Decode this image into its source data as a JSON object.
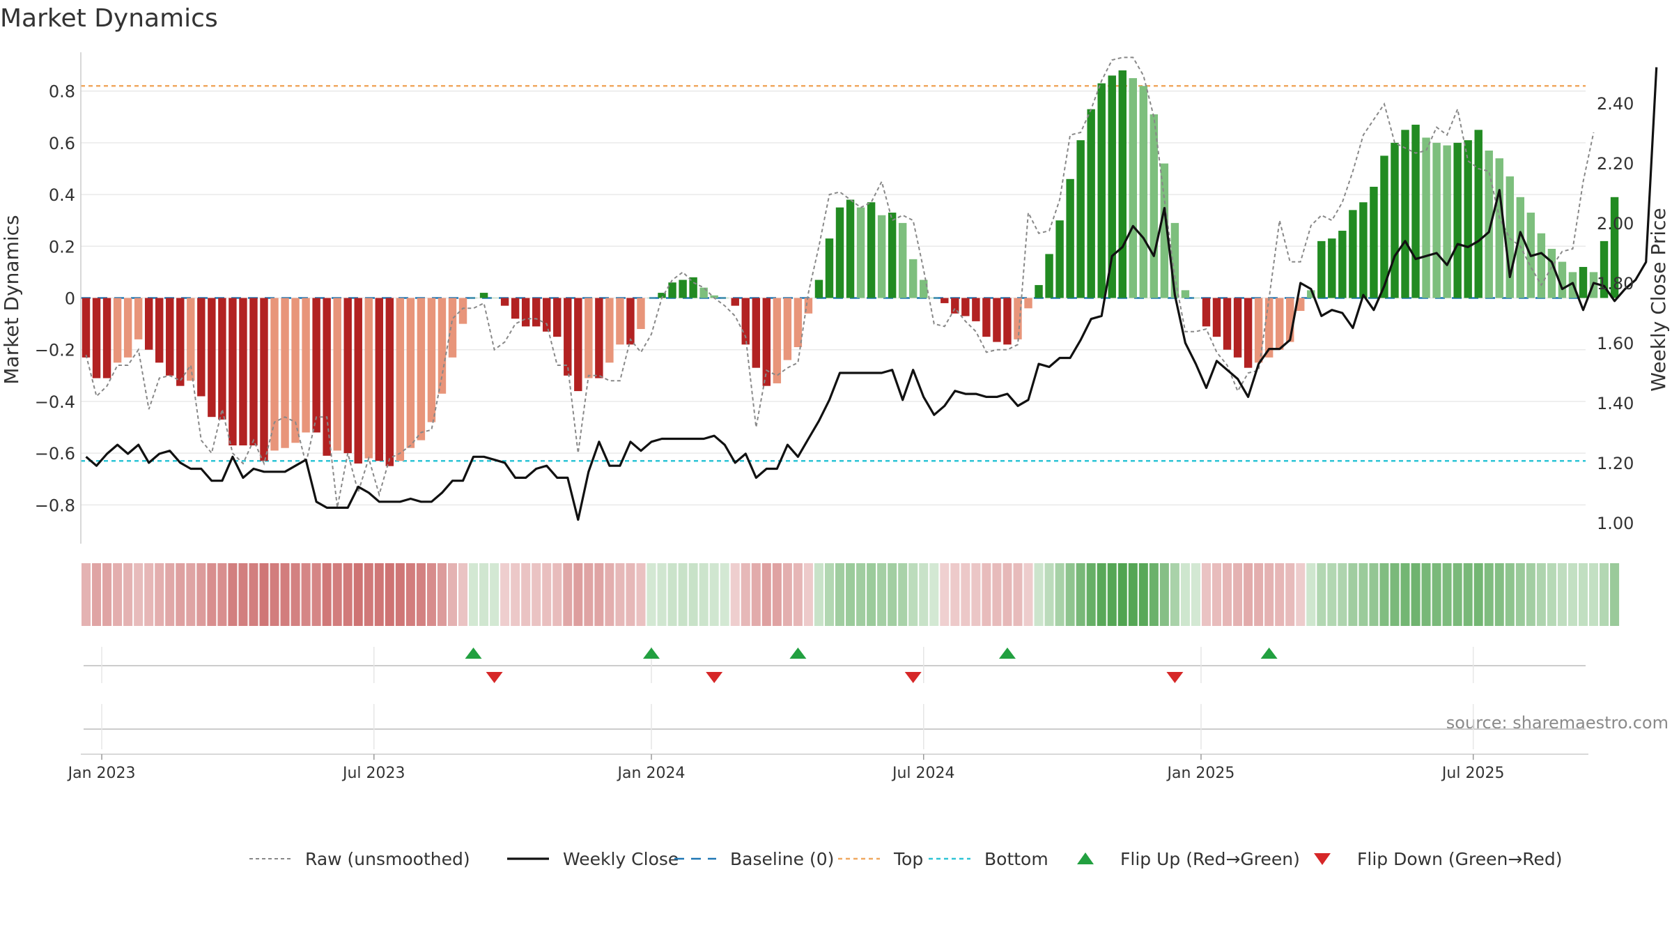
{
  "chart_data": {
    "type": "bar",
    "title": "Market Dynamics",
    "ylabel_left": "Market Dynamics",
    "ylabel_right": "Weekly Close Price",
    "source": "source: sharemaestro.com",
    "y_left": {
      "min": -0.95,
      "max": 0.95,
      "ticks": [
        -0.8,
        -0.6,
        -0.4,
        -0.2,
        0,
        0.2,
        0.4,
        0.6,
        0.8
      ],
      "tick_labels": [
        "−0.8",
        "−0.6",
        "−0.4",
        "−0.2",
        "0",
        "0.2",
        "0.4",
        "0.6",
        "0.8"
      ]
    },
    "y_right": {
      "min": 0.93,
      "max": 2.57,
      "ticks": [
        1.0,
        1.2,
        1.4,
        1.6,
        1.8,
        2.0,
        2.2,
        2.4
      ],
      "tick_labels": [
        "1.00",
        "1.20",
        "1.40",
        "1.60",
        "1.80",
        "2.00",
        "2.20",
        "2.40"
      ]
    },
    "x_axis": {
      "start_week": 0,
      "end_week": 144,
      "ticks": [
        {
          "week": 2,
          "label": "Jan 2023"
        },
        {
          "week": 28,
          "label": "Jul 2023"
        },
        {
          "week": 54.5,
          "label": "Jan 2024"
        },
        {
          "week": 80.5,
          "label": "Jul 2024"
        },
        {
          "week": 107,
          "label": "Jan 2025"
        },
        {
          "week": 133,
          "label": "Jul 2025"
        }
      ]
    },
    "top_level": 0.82,
    "bottom_level": -0.63,
    "baseline": 0,
    "series": [
      {
        "name": "Market Dynamics (smoothed)",
        "values": [
          -0.23,
          -0.31,
          -0.31,
          -0.25,
          -0.23,
          -0.16,
          -0.2,
          -0.25,
          -0.3,
          -0.34,
          -0.32,
          -0.38,
          -0.46,
          -0.47,
          -0.57,
          -0.57,
          -0.57,
          -0.63,
          -0.59,
          -0.58,
          -0.56,
          -0.52,
          -0.52,
          -0.61,
          -0.59,
          -0.6,
          -0.64,
          -0.62,
          -0.63,
          -0.65,
          -0.63,
          -0.58,
          -0.55,
          -0.48,
          -0.37,
          -0.23,
          -0.1,
          0.0,
          0.02,
          0.0,
          -0.03,
          -0.08,
          -0.11,
          -0.11,
          -0.13,
          -0.15,
          -0.3,
          -0.36,
          -0.31,
          -0.31,
          -0.25,
          -0.18,
          -0.18,
          -0.12,
          0.0,
          0.02,
          0.06,
          0.07,
          0.08,
          0.04,
          0.01,
          0.0,
          -0.03,
          -0.18,
          -0.27,
          -0.34,
          -0.33,
          -0.24,
          -0.19,
          -0.06,
          0.07,
          0.23,
          0.35,
          0.38,
          0.35,
          0.37,
          0.32,
          0.33,
          0.29,
          0.15,
          0.07,
          0.0,
          -0.02,
          -0.06,
          -0.07,
          -0.09,
          -0.15,
          -0.17,
          -0.18,
          -0.16,
          -0.04,
          0.05,
          0.17,
          0.3,
          0.46,
          0.61,
          0.73,
          0.83,
          0.86,
          0.88,
          0.85,
          0.82,
          0.71,
          0.52,
          0.29,
          0.03,
          0.0,
          -0.11,
          -0.15,
          -0.2,
          -0.23,
          -0.27,
          -0.25,
          -0.23,
          -0.2,
          -0.17,
          -0.05,
          0.03,
          0.22,
          0.23,
          0.26,
          0.34,
          0.37,
          0.43,
          0.55,
          0.6,
          0.65,
          0.67,
          0.62,
          0.6,
          0.59,
          0.6,
          0.61,
          0.65,
          0.57,
          0.54,
          0.47,
          0.39,
          0.33,
          0.25,
          0.19,
          0.14,
          0.1,
          0.12,
          0.1,
          0.22,
          0.39
        ]
      },
      {
        "name": "Raw (unsmoothed)",
        "values": [
          -0.22,
          -0.38,
          -0.34,
          -0.26,
          -0.26,
          -0.2,
          -0.43,
          -0.31,
          -0.3,
          -0.32,
          -0.26,
          -0.55,
          -0.6,
          -0.43,
          -0.6,
          -0.64,
          -0.55,
          -0.64,
          -0.48,
          -0.46,
          -0.48,
          -0.64,
          -0.46,
          -0.46,
          -0.81,
          -0.6,
          -0.75,
          -0.62,
          -0.76,
          -0.62,
          -0.6,
          -0.57,
          -0.52,
          -0.51,
          -0.3,
          -0.08,
          -0.04,
          -0.04,
          -0.02,
          -0.2,
          -0.17,
          -0.1,
          -0.08,
          -0.08,
          -0.1,
          -0.26,
          -0.26,
          -0.6,
          -0.3,
          -0.3,
          -0.32,
          -0.32,
          -0.16,
          -0.21,
          -0.14,
          0.0,
          0.07,
          0.1,
          0.06,
          0.04,
          0.0,
          -0.03,
          -0.07,
          -0.15,
          -0.5,
          -0.28,
          -0.3,
          -0.27,
          -0.25,
          0.02,
          0.2,
          0.4,
          0.41,
          0.38,
          0.35,
          0.37,
          0.45,
          0.3,
          0.32,
          0.3,
          0.11,
          -0.1,
          -0.11,
          -0.04,
          -0.09,
          -0.13,
          -0.21,
          -0.2,
          -0.2,
          -0.18,
          0.33,
          0.25,
          0.26,
          0.38,
          0.63,
          0.64,
          0.73,
          0.84,
          0.92,
          0.93,
          0.93,
          0.86,
          0.7,
          0.38,
          0.08,
          -0.13,
          -0.13,
          -0.12,
          -0.21,
          -0.26,
          -0.36,
          -0.29,
          -0.28,
          0.0,
          0.3,
          0.14,
          0.14,
          0.28,
          0.32,
          0.3,
          0.37,
          0.49,
          0.63,
          0.69,
          0.75,
          0.6,
          0.58,
          0.56,
          0.57,
          0.66,
          0.63,
          0.73,
          0.53,
          0.5,
          0.49,
          0.31,
          0.23,
          0.2,
          0.12,
          0.05,
          0.12,
          0.18,
          0.19,
          0.45,
          0.64
        ]
      },
      {
        "name": "Weekly Close",
        "values": [
          1.22,
          1.19,
          1.23,
          1.26,
          1.23,
          1.26,
          1.2,
          1.23,
          1.24,
          1.2,
          1.18,
          1.18,
          1.14,
          1.14,
          1.22,
          1.15,
          1.18,
          1.17,
          1.17,
          1.17,
          1.19,
          1.21,
          1.07,
          1.05,
          1.05,
          1.05,
          1.12,
          1.1,
          1.07,
          1.07,
          1.07,
          1.08,
          1.07,
          1.07,
          1.1,
          1.14,
          1.14,
          1.22,
          1.22,
          1.21,
          1.2,
          1.15,
          1.15,
          1.18,
          1.19,
          1.15,
          1.15,
          1.01,
          1.17,
          1.27,
          1.19,
          1.19,
          1.27,
          1.24,
          1.27,
          1.28,
          1.28,
          1.28,
          1.28,
          1.28,
          1.29,
          1.26,
          1.2,
          1.23,
          1.15,
          1.18,
          1.18,
          1.26,
          1.22,
          1.28,
          1.34,
          1.41,
          1.5,
          1.5,
          1.5,
          1.5,
          1.5,
          1.51,
          1.41,
          1.51,
          1.42,
          1.36,
          1.39,
          1.44,
          1.43,
          1.43,
          1.42,
          1.42,
          1.43,
          1.39,
          1.41,
          1.53,
          1.52,
          1.55,
          1.55,
          1.61,
          1.68,
          1.69,
          1.89,
          1.92,
          1.99,
          1.95,
          1.89,
          2.05,
          1.76,
          1.6,
          1.53,
          1.45,
          1.54,
          1.51,
          1.48,
          1.42,
          1.53,
          1.58,
          1.58,
          1.61,
          1.8,
          1.78,
          1.69,
          1.71,
          1.7,
          1.65,
          1.76,
          1.71,
          1.79,
          1.89,
          1.94,
          1.88,
          1.89,
          1.9,
          1.86,
          1.93,
          1.92,
          1.94,
          1.97,
          2.11,
          1.82,
          1.97,
          1.89,
          1.9,
          1.87,
          1.78,
          1.8,
          1.71,
          1.8,
          1.79,
          1.74,
          1.78,
          1.81,
          1.87,
          2.52
        ]
      }
    ],
    "regime_strip": {
      "colors": [
        "#b22222",
        "#e8957a",
        "#228b22",
        "#7dbf7d"
      ],
      "regimes_note": "strong-red, weak-red, strong-green, weak-green"
    },
    "flip_up_weeks": [
      37.5,
      54.5,
      68.5,
      88.5,
      113.5
    ],
    "flip_down_weeks": [
      39.5,
      60.5,
      79.5,
      104.5
    ],
    "colors": {
      "strong_red": "#b22222",
      "weak_red": "#e8957a",
      "strong_green": "#228b22",
      "weak_green": "#7dbf7d",
      "raw_line": "#888888",
      "close_line": "#111111",
      "baseline": "#1f77b4",
      "top": "#f0a860",
      "bottom": "#2ec4d6",
      "flip_up": "#22a040",
      "flip_down": "#d62728"
    },
    "legend": [
      {
        "key": "raw",
        "label": "Raw (unsmoothed)"
      },
      {
        "key": "close",
        "label": "Weekly Close"
      },
      {
        "key": "baseline",
        "label": "Baseline (0)"
      },
      {
        "key": "top",
        "label": "Top"
      },
      {
        "key": "bottom",
        "label": "Bottom"
      },
      {
        "key": "flipup",
        "label": "Flip Up (Red→Green)"
      },
      {
        "key": "flipdown",
        "label": "Flip Down (Green→Red)"
      }
    ]
  }
}
